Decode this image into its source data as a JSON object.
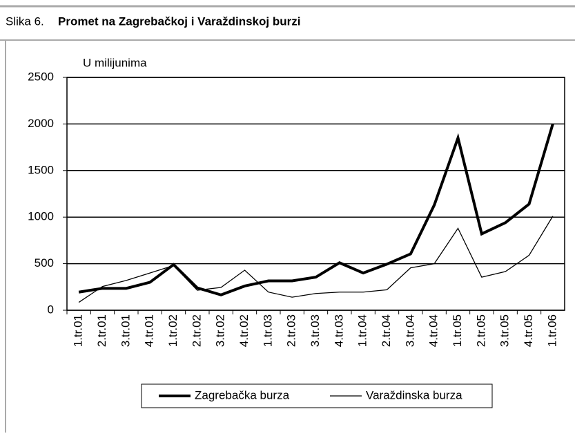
{
  "chart_data": {
    "type": "line",
    "figure_label": "Slika 6.",
    "title": "Promet na Zagrebačkoj i Varaždinskoj burzi",
    "y_label": "U milijunima",
    "categories": [
      "1.tr.01",
      "2.tr.01",
      "3.tr.01",
      "4.tr.01",
      "1.tr.02",
      "2.tr.02",
      "3.tr.02",
      "4.tr.02",
      "1.tr.03",
      "2.tr.03",
      "3.tr.03",
      "4.tr.03",
      "1.tr.04",
      "2.tr.04",
      "3.tr.04",
      "4.tr.04",
      "1.tr.05",
      "2.tr.05",
      "3.tr.05",
      "4.tr.05",
      "1.tr.06"
    ],
    "series": [
      {
        "name": "Zagrebačka burza",
        "color": "#000000",
        "values": [
          195,
          235,
          235,
          300,
          490,
          240,
          165,
          260,
          315,
          315,
          355,
          510,
          400,
          495,
          605,
          1130,
          1850,
          820,
          940,
          1140,
          2000
        ]
      },
      {
        "name": "Varaždinska burza",
        "color": "#000000",
        "values": [
          85,
          255,
          320,
          400,
          480,
          215,
          245,
          430,
          195,
          140,
          180,
          195,
          195,
          220,
          455,
          500,
          880,
          355,
          415,
          590,
          1010
        ]
      }
    ],
    "ylim": [
      0,
      2500
    ],
    "yticks": [
      0,
      500,
      1000,
      1500,
      2000,
      2500
    ],
    "grid": true,
    "legend": "bottom"
  }
}
